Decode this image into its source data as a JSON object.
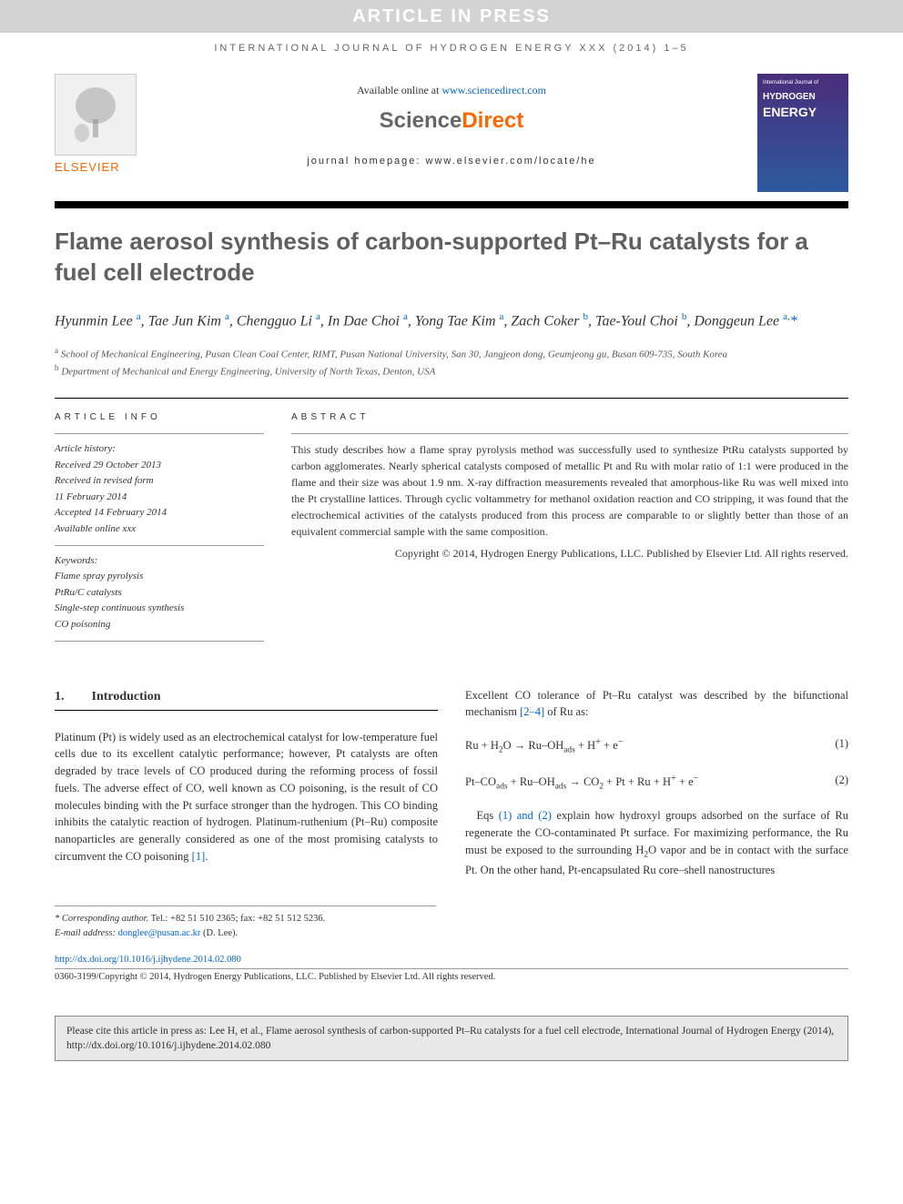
{
  "banner": "ARTICLE IN PRESS",
  "journal_ref": "INTERNATIONAL JOURNAL OF HYDROGEN ENERGY XXX (2014) 1–5",
  "header": {
    "elsevier": "ELSEVIER",
    "available_prefix": "Available online at ",
    "available_link": "www.sciencedirect.com",
    "sd_science": "Science",
    "sd_direct": "Direct",
    "homepage": "journal homepage: www.elsevier.com/locate/he",
    "cover_top": "International Journal of",
    "cover_line1": "HYDROGEN",
    "cover_line2": "ENERGY"
  },
  "title": "Flame aerosol synthesis of carbon-supported Pt–Ru catalysts for a fuel cell electrode",
  "authors_html": "Hyunmin Lee <sup>a</sup>, Tae Jun Kim <sup>a</sup>, Chengguo Li <sup>a</sup>, In Dae Choi <sup>a</sup>, Yong Tae Kim <sup>a</sup>, Zach Coker <sup>b</sup>, Tae-Youl Choi <sup>b</sup>, Donggeun Lee <sup>a,</sup><span class='star'>*</span>",
  "affiliations": {
    "a": "School of Mechanical Engineering, Pusan Clean Coal Center, RIMT, Pusan National University, San 30, Jangjeon dong, Geumjeong gu, Busan 609-735, South Korea",
    "b": "Department of Mechanical and Energy Engineering, University of North Texas, Denton, USA"
  },
  "article_info": {
    "heading": "ARTICLE INFO",
    "history_label": "Article history:",
    "received": "Received 29 October 2013",
    "revised1": "Received in revised form",
    "revised2": "11 February 2014",
    "accepted": "Accepted 14 February 2014",
    "online": "Available online xxx",
    "keywords_label": "Keywords:",
    "kw1": "Flame spray pyrolysis",
    "kw2": "PtRu/C catalysts",
    "kw3": "Single-step continuous synthesis",
    "kw4": "CO poisoning"
  },
  "abstract": {
    "heading": "ABSTRACT",
    "text": "This study describes how a flame spray pyrolysis method was successfully used to synthesize PtRu catalysts supported by carbon agglomerates. Nearly spherical catalysts composed of metallic Pt and Ru with molar ratio of 1:1 were produced in the flame and their size was about 1.9 nm. X-ray diffraction measurements revealed that amorphous-like Ru was well mixed into the Pt crystalline lattices. Through cyclic voltammetry for methanol oxidation reaction and CO stripping, it was found that the electrochemical activities of the catalysts produced from this process are comparable to or slightly better than those of an equivalent commercial sample with the same composition.",
    "copyright": "Copyright © 2014, Hydrogen Energy Publications, LLC. Published by Elsevier Ltd. All rights reserved."
  },
  "section1": {
    "num": "1.",
    "title": "Introduction"
  },
  "body": {
    "col1_p1": "Platinum (Pt) is widely used as an electrochemical catalyst for low-temperature fuel cells due to its excellent catalytic performance; however, Pt catalysts are often degraded by trace levels of CO produced during the reforming process of fossil fuels. The adverse effect of CO, well known as CO poisoning, is the result of CO molecules binding with the Pt surface stronger than the hydrogen. This CO binding inhibits the catalytic reaction of hydrogen. Platinum-ruthenium (Pt–Ru) composite nanoparticles are generally considered as one of the most promising catalysts to circumvent the CO poisoning ",
    "col1_ref1": "[1]",
    "col1_p1_end": ".",
    "col2_p1": "Excellent CO tolerance of Pt–Ru catalyst was described by the bifunctional mechanism ",
    "col2_ref1": "[2–4]",
    "col2_p1_end": " of Ru as:",
    "eq1": "Ru + H₂O → Ru–OHₐdₛ + H⁺ + e⁻",
    "eq1_num": "(1)",
    "eq2": "Pt–COₐdₛ + Ru–OHₐdₛ → CO₂ + Pt + Ru + H⁺ + e⁻",
    "eq2_num": "(2)",
    "col2_p2a": "Eqs ",
    "col2_ref2": "(1) and (2)",
    "col2_p2b": " explain how hydroxyl groups adsorbed on the surface of Ru regenerate the CO-contaminated Pt surface. For maximizing performance, the Ru must be exposed to the surrounding H₂O vapor and be in contact with the surface Pt. On the other hand, Pt-encapsulated Ru core–shell nanostructures"
  },
  "footnote": {
    "corr_label": "* Corresponding author.",
    "corr_contact": " Tel.: +82 51 510 2365; fax: +82 51 512 5236.",
    "email_label": "E-mail address: ",
    "email": "donglee@pusan.ac.kr",
    "email_suffix": " (D. Lee)."
  },
  "doi": {
    "link": "http://dx.doi.org/10.1016/j.ijhydene.2014.02.080",
    "copyright": "0360-3199/Copyright © 2014, Hydrogen Energy Publications, LLC. Published by Elsevier Ltd. All rights reserved."
  },
  "cite_box": "Please cite this article in press as: Lee H, et al., Flame aerosol synthesis of carbon-supported Pt–Ru catalysts for a fuel cell electrode, International Journal of Hydrogen Energy (2014), http://dx.doi.org/10.1016/j.ijhydene.2014.02.080"
}
